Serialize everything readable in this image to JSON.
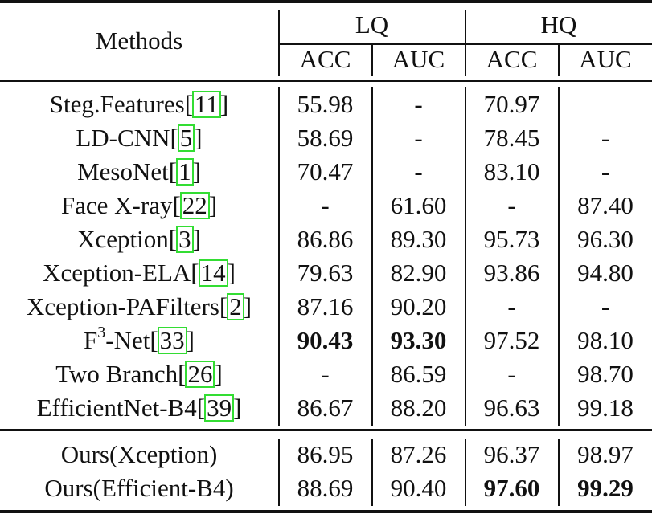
{
  "table": {
    "header": {
      "methods_label": "Methods",
      "groups": [
        {
          "label": "LQ",
          "subcolumns": [
            "ACC",
            "AUC"
          ]
        },
        {
          "label": "HQ",
          "subcolumns": [
            "ACC",
            "AUC"
          ]
        }
      ]
    },
    "rows": [
      {
        "method": "Steg.Features",
        "sup": "",
        "suffix": "",
        "cite": "11",
        "values": [
          "55.98",
          "-",
          "70.97",
          ""
        ],
        "bold": [
          false,
          false,
          false,
          false
        ]
      },
      {
        "method": "LD-CNN",
        "sup": "",
        "suffix": "",
        "cite": "5",
        "values": [
          "58.69",
          "-",
          "78.45",
          "-"
        ],
        "bold": [
          false,
          false,
          false,
          false
        ]
      },
      {
        "method": "MesoNet",
        "sup": "",
        "suffix": "",
        "cite": "1",
        "values": [
          "70.47",
          "-",
          "83.10",
          "-"
        ],
        "bold": [
          false,
          false,
          false,
          false
        ]
      },
      {
        "method": "Face X-ray",
        "sup": "",
        "suffix": "",
        "cite": "22",
        "values": [
          "-",
          "61.60",
          "-",
          "87.40"
        ],
        "bold": [
          false,
          false,
          false,
          false
        ]
      },
      {
        "method": "Xception",
        "sup": "",
        "suffix": "",
        "cite": "3",
        "values": [
          "86.86",
          "89.30",
          "95.73",
          "96.30"
        ],
        "bold": [
          false,
          false,
          false,
          false
        ]
      },
      {
        "method": "Xception-ELA",
        "sup": "",
        "suffix": "",
        "cite": "14",
        "values": [
          "79.63",
          "82.90",
          "93.86",
          "94.80"
        ],
        "bold": [
          false,
          false,
          false,
          false
        ]
      },
      {
        "method": "Xception-PAFilters",
        "sup": "",
        "suffix": "",
        "cite": "2",
        "values": [
          "87.16",
          "90.20",
          "-",
          "-"
        ],
        "bold": [
          false,
          false,
          false,
          false
        ]
      },
      {
        "method": "F",
        "sup": "3",
        "suffix": "-Net",
        "cite": "33",
        "values": [
          "90.43",
          "93.30",
          "97.52",
          "98.10"
        ],
        "bold": [
          true,
          true,
          false,
          false
        ]
      },
      {
        "method": "Two Branch",
        "sup": "",
        "suffix": "",
        "cite": "26",
        "values": [
          "-",
          "86.59",
          "-",
          "98.70"
        ],
        "bold": [
          false,
          false,
          false,
          false
        ]
      },
      {
        "method": "EfficientNet-B4",
        "sup": "",
        "suffix": "",
        "cite": "39",
        "values": [
          "86.67",
          "88.20",
          "96.63",
          "99.18"
        ],
        "bold": [
          false,
          false,
          false,
          false
        ]
      }
    ],
    "ours_rows": [
      {
        "method": "Ours(Xception)",
        "values": [
          "86.95",
          "87.26",
          "96.37",
          "98.97"
        ],
        "bold": [
          false,
          false,
          false,
          false
        ]
      },
      {
        "method": "Ours(Efficient-B4)",
        "values": [
          "88.69",
          "90.40",
          "97.60",
          "99.29"
        ],
        "bold": [
          false,
          false,
          true,
          true
        ]
      }
    ],
    "colors": {
      "citation_box": "#33dd33",
      "text": "#111111",
      "rules": "#111111"
    }
  }
}
